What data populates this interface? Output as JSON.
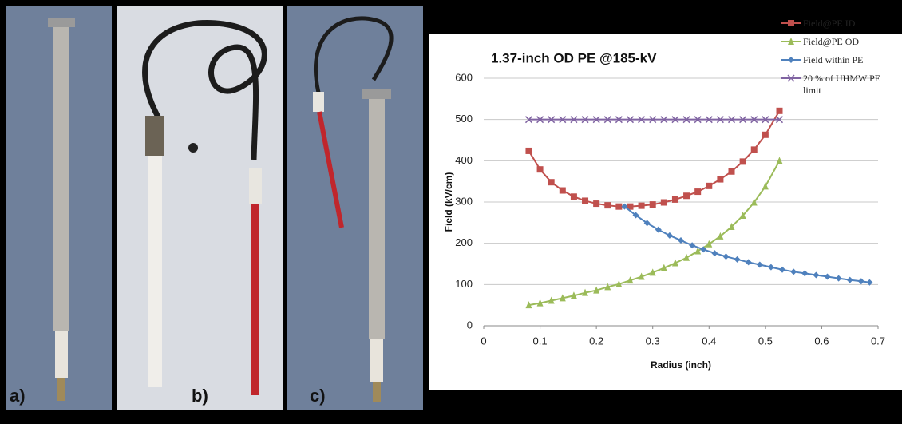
{
  "panel_labels": [
    "a)",
    "b)",
    "c)"
  ],
  "chart_data": {
    "type": "line",
    "title": "1.37-inch OD PE @185-kV",
    "x_label": "Radius (inch)",
    "y_label": "Field (kV/cm)",
    "xlim": [
      0,
      0.7
    ],
    "xticks": [
      0,
      0.1,
      0.2,
      0.3,
      0.4,
      0.5,
      0.6,
      0.7
    ],
    "ylim": [
      0,
      600
    ],
    "yticks": [
      0,
      100,
      200,
      300,
      400,
      500,
      600
    ],
    "grid": true,
    "legend": "right",
    "series": [
      {
        "name": "Field@PE ID",
        "color": "#c0504d",
        "marker": "square",
        "x": [
          0.08,
          0.1,
          0.12,
          0.14,
          0.16,
          0.18,
          0.2,
          0.22,
          0.24,
          0.26,
          0.28,
          0.3,
          0.32,
          0.34,
          0.36,
          0.38,
          0.4,
          0.42,
          0.44,
          0.46,
          0.48,
          0.5,
          0.525
        ],
        "values": [
          424,
          379,
          348,
          328,
          313,
          303,
          296,
          292,
          289,
          289,
          291,
          294,
          299,
          306,
          315,
          325,
          339,
          355,
          374,
          398,
          427,
          463,
          521
        ]
      },
      {
        "name": "Field@PE OD",
        "color": "#9bbb59",
        "marker": "triangle",
        "x": [
          0.08,
          0.1,
          0.12,
          0.14,
          0.16,
          0.18,
          0.2,
          0.22,
          0.24,
          0.26,
          0.28,
          0.3,
          0.32,
          0.34,
          0.36,
          0.38,
          0.4,
          0.42,
          0.44,
          0.46,
          0.48,
          0.5,
          0.525
        ],
        "values": [
          50,
          55,
          61,
          67,
          73,
          80,
          86,
          94,
          101,
          110,
          119,
          129,
          140,
          152,
          165,
          181,
          198,
          217,
          240,
          267,
          299,
          338,
          400
        ]
      },
      {
        "name": "Field within PE",
        "color": "#4f81bd",
        "marker": "diamond",
        "x": [
          0.25,
          0.27,
          0.29,
          0.31,
          0.33,
          0.35,
          0.37,
          0.39,
          0.41,
          0.43,
          0.45,
          0.47,
          0.49,
          0.51,
          0.53,
          0.55,
          0.57,
          0.59,
          0.61,
          0.63,
          0.65,
          0.67,
          0.685
        ],
        "values": [
          289,
          268,
          249,
          233,
          219,
          207,
          195,
          185,
          176,
          168,
          161,
          154,
          148,
          142,
          136,
          131,
          127,
          123,
          119,
          115,
          111,
          108,
          105
        ]
      },
      {
        "name": "20 % of UHMW PE limit",
        "color": "#8064a2",
        "marker": "x",
        "x": [
          0.08,
          0.1,
          0.12,
          0.14,
          0.16,
          0.18,
          0.2,
          0.22,
          0.24,
          0.26,
          0.28,
          0.3,
          0.32,
          0.34,
          0.36,
          0.38,
          0.4,
          0.42,
          0.44,
          0.46,
          0.48,
          0.5,
          0.525
        ],
        "values": [
          500,
          500,
          500,
          500,
          500,
          500,
          500,
          500,
          500,
          500,
          500,
          500,
          500,
          500,
          500,
          500,
          500,
          500,
          500,
          500,
          500,
          500,
          500
        ]
      }
    ]
  }
}
